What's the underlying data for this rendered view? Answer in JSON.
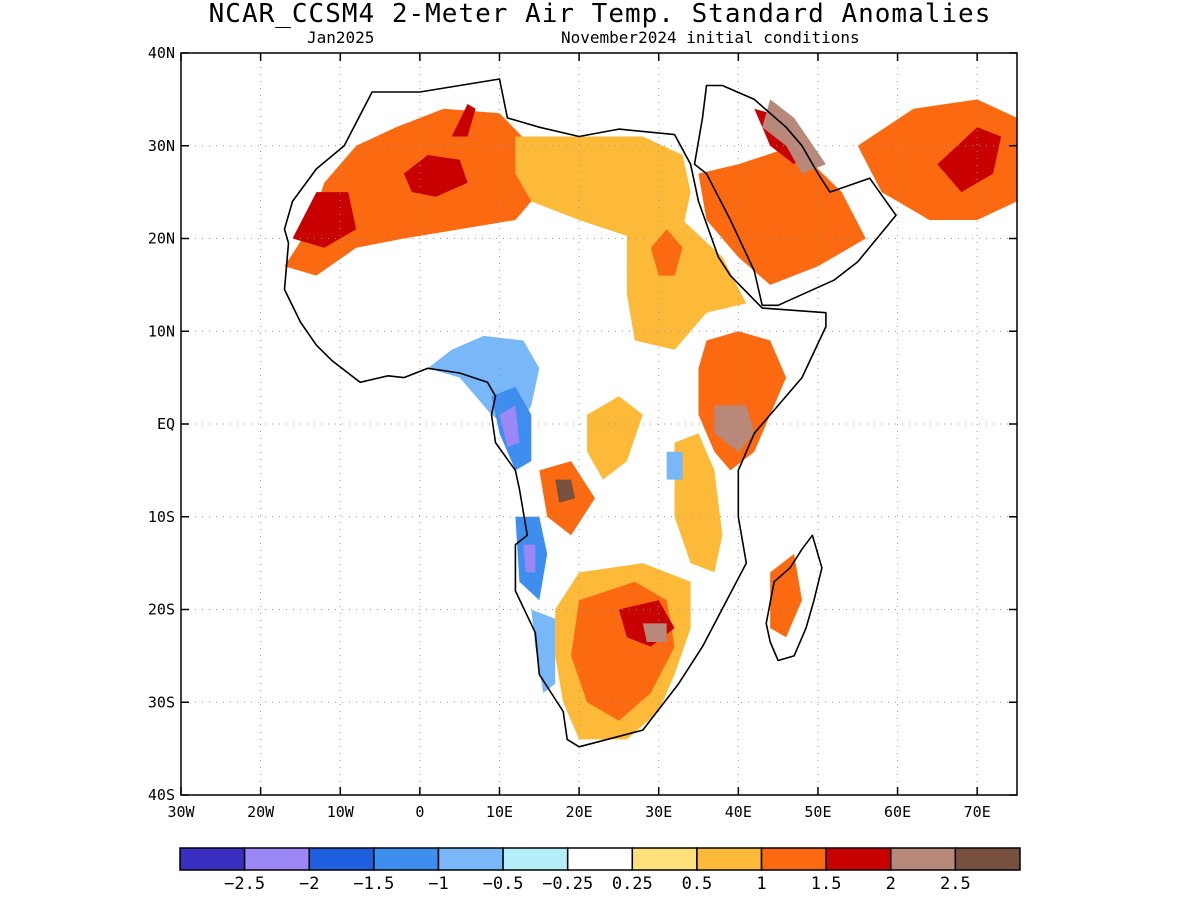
{
  "header": {
    "title": "NCAR_CCSM4 2-Meter Air Temp. Standard Anomalies",
    "target_month": "Jan2025",
    "initial_conditions": "November2024 initial conditions"
  },
  "map": {
    "lon_range": [
      -30,
      75
    ],
    "lat_range": [
      -40,
      40
    ],
    "x_ticks": [
      {
        "lon": -30,
        "label": "30W"
      },
      {
        "lon": -20,
        "label": "20W"
      },
      {
        "lon": -10,
        "label": "10W"
      },
      {
        "lon": 0,
        "label": "0"
      },
      {
        "lon": 10,
        "label": "10E"
      },
      {
        "lon": 20,
        "label": "20E"
      },
      {
        "lon": 30,
        "label": "30E"
      },
      {
        "lon": 40,
        "label": "40E"
      },
      {
        "lon": 50,
        "label": "50E"
      },
      {
        "lon": 60,
        "label": "60E"
      },
      {
        "lon": 70,
        "label": "70E"
      }
    ],
    "y_ticks": [
      {
        "lat": 40,
        "label": "40N"
      },
      {
        "lat": 30,
        "label": "30N"
      },
      {
        "lat": 20,
        "label": "20N"
      },
      {
        "lat": 10,
        "label": "10N"
      },
      {
        "lat": 0,
        "label": "EQ"
      },
      {
        "lat": -10,
        "label": "10S"
      },
      {
        "lat": -20,
        "label": "20S"
      },
      {
        "lat": -30,
        "label": "30S"
      },
      {
        "lat": -40,
        "label": "40S"
      }
    ],
    "grid": true,
    "land_outline": [
      [
        -17,
        21
      ],
      [
        -16,
        24
      ],
      [
        -13,
        27.5
      ],
      [
        -9.5,
        30
      ],
      [
        -6,
        35.8
      ],
      [
        0,
        35.8
      ],
      [
        10,
        37.2
      ],
      [
        11,
        33
      ],
      [
        15,
        32
      ],
      [
        20,
        31
      ],
      [
        25,
        31.8
      ],
      [
        32,
        31.2
      ],
      [
        34,
        28
      ],
      [
        35,
        24
      ],
      [
        37.5,
        18
      ],
      [
        39,
        16
      ],
      [
        43,
        12.5
      ],
      [
        51,
        12
      ],
      [
        51,
        10.5
      ],
      [
        48,
        5
      ],
      [
        42,
        -1
      ],
      [
        40,
        -5
      ],
      [
        40,
        -10
      ],
      [
        41,
        -15
      ],
      [
        35.5,
        -24
      ],
      [
        32.5,
        -28
      ],
      [
        28,
        -33
      ],
      [
        20,
        -34.8
      ],
      [
        18.5,
        -34
      ],
      [
        18,
        -31
      ],
      [
        15,
        -27
      ],
      [
        14.5,
        -22.5
      ],
      [
        12,
        -18
      ],
      [
        12,
        -13
      ],
      [
        13.5,
        -12
      ],
      [
        12.5,
        -7
      ],
      [
        12,
        -5
      ],
      [
        9.5,
        -2
      ],
      [
        9,
        1
      ],
      [
        9.5,
        3
      ],
      [
        8.5,
        4.5
      ],
      [
        5,
        5.5
      ],
      [
        1,
        6
      ],
      [
        -2,
        5
      ],
      [
        -4,
        5.2
      ],
      [
        -7.5,
        4.5
      ],
      [
        -11,
        6.8
      ],
      [
        -13,
        8.5
      ],
      [
        -15,
        11
      ],
      [
        -17,
        14.5
      ],
      [
        -16.5,
        19.5
      ],
      [
        -17,
        21
      ]
    ],
    "madagascar_outline": [
      [
        49.3,
        -12
      ],
      [
        50.5,
        -15.5
      ],
      [
        49.5,
        -19
      ],
      [
        48.5,
        -22
      ],
      [
        47,
        -25
      ],
      [
        45,
        -25.5
      ],
      [
        44,
        -23.5
      ],
      [
        43.5,
        -21.5
      ],
      [
        44.5,
        -17
      ],
      [
        46.5,
        -15.5
      ],
      [
        48,
        -13.5
      ],
      [
        49.3,
        -12
      ]
    ],
    "arabia_outline": [
      [
        34.5,
        28
      ],
      [
        36,
        27
      ],
      [
        39,
        22
      ],
      [
        42,
        16.5
      ],
      [
        43,
        12.8
      ],
      [
        45,
        12.8
      ],
      [
        52,
        15.5
      ],
      [
        55,
        17.5
      ],
      [
        59.8,
        22.5
      ],
      [
        56.5,
        26.5
      ],
      [
        51.5,
        25
      ],
      [
        50,
        27
      ],
      [
        48,
        30
      ],
      [
        46,
        32
      ],
      [
        42,
        35
      ],
      [
        38,
        36.5
      ],
      [
        36,
        36.5
      ],
      [
        35.5,
        33
      ],
      [
        34.5,
        28
      ]
    ],
    "anomaly_regions": [
      {
        "level": 1.25,
        "polygon": [
          [
            -17,
            17
          ],
          [
            -14,
            21
          ],
          [
            -12,
            26
          ],
          [
            -8,
            30
          ],
          [
            -3,
            32
          ],
          [
            3,
            34
          ],
          [
            10,
            33.5
          ],
          [
            14,
            30
          ],
          [
            16,
            26
          ],
          [
            12,
            22
          ],
          [
            5,
            21
          ],
          [
            -2,
            20
          ],
          [
            -8,
            19
          ],
          [
            -13,
            16
          ]
        ]
      },
      {
        "level": 1.75,
        "polygon": [
          [
            -16,
            20
          ],
          [
            -13,
            25
          ],
          [
            -9,
            25
          ],
          [
            -8,
            21
          ],
          [
            -12,
            19
          ]
        ]
      },
      {
        "level": 1.75,
        "polygon": [
          [
            -2,
            27
          ],
          [
            1,
            29
          ],
          [
            5,
            28.5
          ],
          [
            6,
            26
          ],
          [
            2,
            24.5
          ],
          [
            -1,
            25
          ]
        ]
      },
      {
        "level": 1.75,
        "polygon": [
          [
            4,
            31
          ],
          [
            6,
            34.5
          ],
          [
            7,
            34
          ],
          [
            6,
            31
          ]
        ]
      },
      {
        "level": 0.75,
        "polygon": [
          [
            12,
            31
          ],
          [
            20,
            31
          ],
          [
            28,
            31
          ],
          [
            33,
            29
          ],
          [
            34,
            25
          ],
          [
            33,
            21
          ],
          [
            27,
            20
          ],
          [
            20,
            22
          ],
          [
            14,
            24
          ],
          [
            12,
            27
          ]
        ]
      },
      {
        "level": 0.75,
        "polygon": [
          [
            26,
            21
          ],
          [
            33,
            22
          ],
          [
            38,
            18
          ],
          [
            41,
            13
          ],
          [
            36,
            12
          ],
          [
            32,
            8
          ],
          [
            27,
            9
          ],
          [
            26,
            14
          ]
        ]
      },
      {
        "level": 1.25,
        "polygon": [
          [
            29,
            19
          ],
          [
            31,
            21
          ],
          [
            33,
            19
          ],
          [
            32,
            16
          ],
          [
            30,
            16
          ]
        ]
      },
      {
        "level": 1.25,
        "polygon": [
          [
            35,
            27
          ],
          [
            40,
            28
          ],
          [
            47,
            30
          ],
          [
            53,
            25
          ],
          [
            56,
            20
          ],
          [
            50,
            17
          ],
          [
            44,
            15
          ],
          [
            40,
            18
          ],
          [
            36,
            22
          ]
        ]
      },
      {
        "level": 1.75,
        "polygon": [
          [
            42,
            34
          ],
          [
            46,
            33
          ],
          [
            49,
            30
          ],
          [
            47,
            28
          ],
          [
            44,
            30
          ]
        ]
      },
      {
        "level": 2.25,
        "polygon": [
          [
            44,
            35
          ],
          [
            47,
            33
          ],
          [
            51,
            28
          ],
          [
            48,
            27
          ],
          [
            46,
            30
          ],
          [
            43,
            32
          ]
        ]
      },
      {
        "level": 1.25,
        "polygon": [
          [
            55,
            30
          ],
          [
            62,
            34
          ],
          [
            70,
            35
          ],
          [
            75,
            33
          ],
          [
            75,
            24
          ],
          [
            70,
            22
          ],
          [
            64,
            22
          ],
          [
            58,
            25
          ]
        ]
      },
      {
        "level": 1.75,
        "polygon": [
          [
            65,
            28
          ],
          [
            70,
            32
          ],
          [
            73,
            31
          ],
          [
            72,
            27
          ],
          [
            68,
            25
          ]
        ]
      },
      {
        "level": 1.25,
        "polygon": [
          [
            36,
            9
          ],
          [
            40,
            10
          ],
          [
            44,
            9
          ],
          [
            46,
            5
          ],
          [
            44,
            1
          ],
          [
            42,
            -3
          ],
          [
            39,
            -5
          ],
          [
            37,
            -3
          ],
          [
            35,
            1
          ],
          [
            35,
            6
          ]
        ]
      },
      {
        "level": 2.25,
        "polygon": [
          [
            37,
            2
          ],
          [
            41,
            2
          ],
          [
            42,
            -1
          ],
          [
            40,
            -3
          ],
          [
            37,
            -1
          ]
        ]
      },
      {
        "level": 0.75,
        "polygon": [
          [
            32,
            -2
          ],
          [
            35,
            -1
          ],
          [
            37,
            -5
          ],
          [
            38,
            -12
          ],
          [
            37,
            -16
          ],
          [
            34,
            -15
          ],
          [
            32,
            -10
          ]
        ]
      },
      {
        "level": 0.75,
        "polygon": [
          [
            21,
            1
          ],
          [
            25,
            3
          ],
          [
            28,
            1
          ],
          [
            26,
            -4
          ],
          [
            23,
            -6
          ],
          [
            21,
            -3
          ]
        ]
      },
      {
        "level": 1.25,
        "polygon": [
          [
            15,
            -5
          ],
          [
            19,
            -4
          ],
          [
            22,
            -8
          ],
          [
            19,
            -12
          ],
          [
            16,
            -10
          ]
        ]
      },
      {
        "level": 2.75,
        "polygon": [
          [
            17,
            -6
          ],
          [
            19,
            -6
          ],
          [
            19.5,
            -8
          ],
          [
            17.5,
            -8.5
          ]
        ]
      },
      {
        "level": 0.75,
        "polygon": [
          [
            20,
            -16
          ],
          [
            28,
            -15
          ],
          [
            34,
            -17
          ],
          [
            34,
            -22
          ],
          [
            32,
            -27
          ],
          [
            30,
            -31
          ],
          [
            26,
            -34
          ],
          [
            20,
            -34
          ],
          [
            18,
            -30
          ],
          [
            17,
            -25
          ],
          [
            17,
            -20
          ]
        ]
      },
      {
        "level": 1.25,
        "polygon": [
          [
            20,
            -19
          ],
          [
            27,
            -17
          ],
          [
            31,
            -19
          ],
          [
            32,
            -24
          ],
          [
            29,
            -29
          ],
          [
            25,
            -32
          ],
          [
            21,
            -30
          ],
          [
            19,
            -25
          ]
        ]
      },
      {
        "level": 1.75,
        "polygon": [
          [
            25,
            -20
          ],
          [
            30,
            -19
          ],
          [
            32,
            -22
          ],
          [
            29,
            -24
          ],
          [
            26,
            -23
          ]
        ]
      },
      {
        "level": 2.25,
        "polygon": [
          [
            28,
            -21.5
          ],
          [
            31,
            -21.5
          ],
          [
            31,
            -23.5
          ],
          [
            28.5,
            -23.5
          ]
        ]
      },
      {
        "level": 1.25,
        "polygon": [
          [
            44,
            -16
          ],
          [
            47,
            -14
          ],
          [
            48,
            -19
          ],
          [
            46,
            -23
          ],
          [
            44,
            -22
          ]
        ]
      },
      {
        "level": -0.75,
        "polygon": [
          [
            1,
            6
          ],
          [
            4,
            8
          ],
          [
            8,
            9.5
          ],
          [
            13,
            9
          ],
          [
            15,
            6
          ],
          [
            14,
            2
          ],
          [
            12,
            -1
          ],
          [
            9,
            1
          ],
          [
            5,
            5
          ]
        ]
      },
      {
        "level": -1.25,
        "polygon": [
          [
            9,
            3
          ],
          [
            12,
            4
          ],
          [
            14,
            1
          ],
          [
            14,
            -4
          ],
          [
            12,
            -5
          ],
          [
            10,
            -1
          ]
        ]
      },
      {
        "level": -2.25,
        "polygon": [
          [
            10,
            1
          ],
          [
            12,
            2
          ],
          [
            12.5,
            -2
          ],
          [
            11,
            -2.5
          ]
        ]
      },
      {
        "level": -1.25,
        "polygon": [
          [
            12,
            -10
          ],
          [
            15,
            -10
          ],
          [
            16,
            -14
          ],
          [
            15,
            -19
          ],
          [
            12.5,
            -17
          ]
        ]
      },
      {
        "level": -2.25,
        "polygon": [
          [
            13,
            -13
          ],
          [
            14.5,
            -13
          ],
          [
            14.5,
            -16
          ],
          [
            13.3,
            -16
          ]
        ]
      },
      {
        "level": -0.75,
        "polygon": [
          [
            14,
            -20
          ],
          [
            17,
            -21
          ],
          [
            17,
            -28
          ],
          [
            15.5,
            -29
          ],
          [
            14.5,
            -24
          ]
        ]
      },
      {
        "level": -0.75,
        "polygon": [
          [
            31,
            -3
          ],
          [
            33,
            -3
          ],
          [
            33,
            -6
          ],
          [
            31,
            -6
          ]
        ]
      }
    ]
  },
  "colorbar": {
    "colors": [
      "#3a2ec0",
      "#9b87f5",
      "#1e5fe0",
      "#3e8ef0",
      "#78b8f8",
      "#b4eef8",
      "#ffffff",
      "#fee07a",
      "#fdb938",
      "#fb6a10",
      "#c80000",
      "#b8887a",
      "#78503f"
    ],
    "labels": [
      "-2.5",
      "-2",
      "-1.5",
      "-1",
      "-0.5",
      "-0.25",
      "0.25",
      "0.5",
      "1",
      "1.5",
      "2",
      "2.5"
    ],
    "bounds": [
      -3,
      -2.5,
      -2,
      -1.5,
      -1,
      -0.5,
      -0.25,
      0.25,
      0.5,
      1,
      1.5,
      2,
      2.5,
      3
    ]
  }
}
